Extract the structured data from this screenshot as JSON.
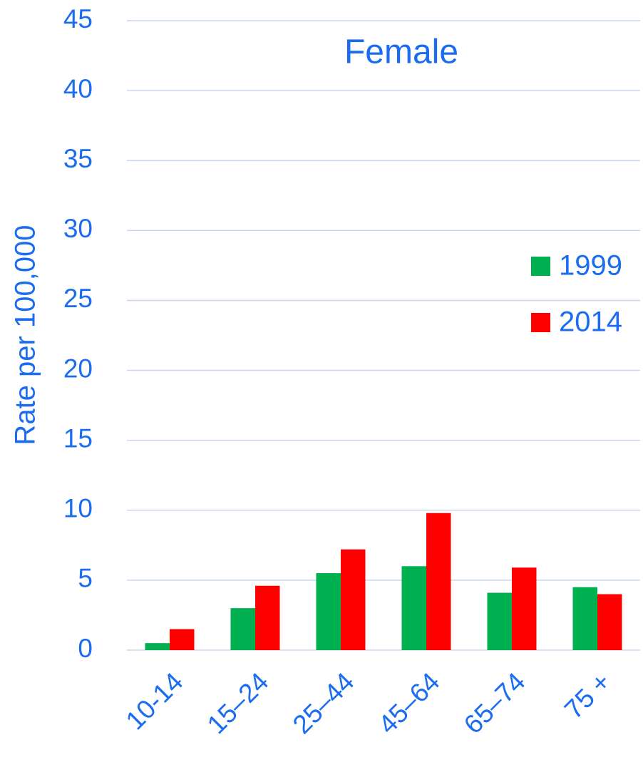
{
  "chart_data": {
    "type": "bar",
    "title": "Female",
    "y_label": "Rate per 100,000",
    "categories": [
      "10-14",
      "15–24",
      "25–44",
      "45–64",
      "65–74",
      "75 +"
    ],
    "series": [
      {
        "name": "1999",
        "color": "#00b050",
        "values": [
          0.5,
          3.0,
          5.5,
          6.0,
          4.1,
          4.5
        ]
      },
      {
        "name": "2014",
        "color": "#ff0000",
        "values": [
          1.5,
          4.6,
          7.2,
          9.8,
          5.9,
          4.0
        ]
      }
    ],
    "ylim": [
      0,
      45
    ],
    "yticks": [
      0,
      5,
      10,
      15,
      20,
      25,
      30,
      35,
      40,
      45
    ],
    "grid": true,
    "legend": "right"
  }
}
